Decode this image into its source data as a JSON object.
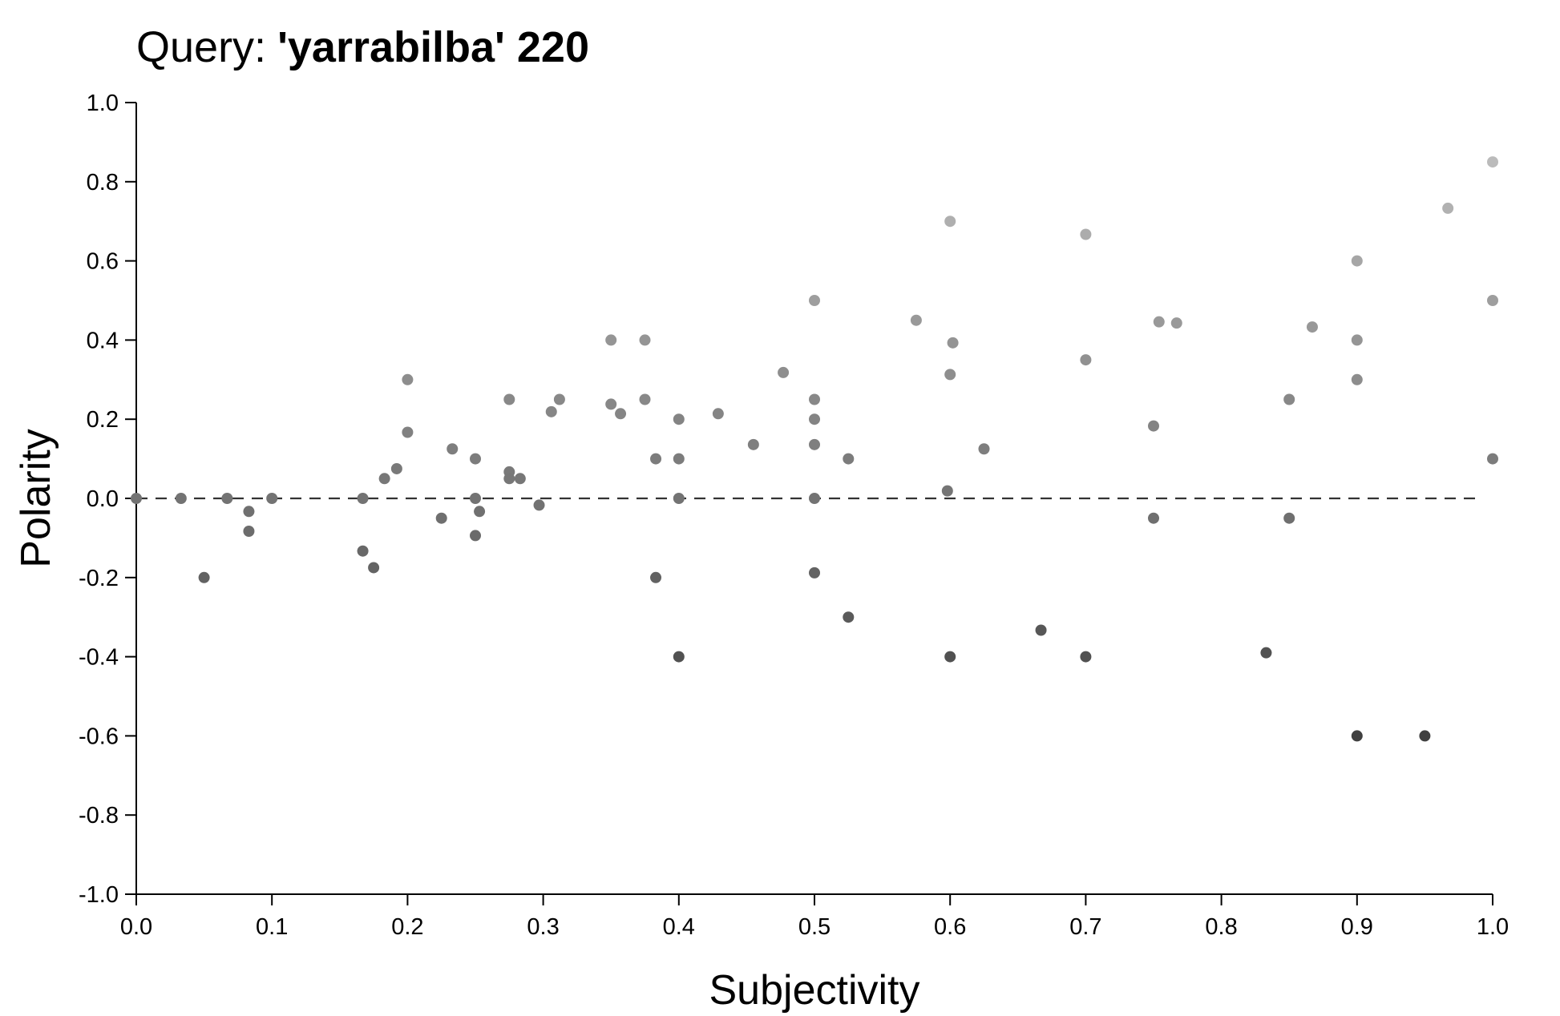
{
  "title": {
    "prefix": "Query:",
    "query": "'yarrabilba' 220"
  },
  "chart_data": {
    "type": "scatter",
    "xlabel": "Subjectivity",
    "ylabel": "Polarity",
    "xlim": [
      0,
      1
    ],
    "ylim": [
      -1,
      1
    ],
    "xticks": [
      "0.0",
      "0.1",
      "0.2",
      "0.3",
      "0.4",
      "0.5",
      "0.6",
      "0.7",
      "0.8",
      "0.9",
      "1.0"
    ],
    "yticks": [
      "1.0",
      "0.8",
      "0.6",
      "0.4",
      "0.2",
      "0.0",
      "-0.2",
      "-0.4",
      "-0.6",
      "-0.8",
      "-1.0"
    ],
    "reference_line": {
      "y": 0,
      "style": "dashed"
    },
    "grid": false,
    "point_color_encoding": "grayscale by polarity (darker = more negative, lighter = more positive)",
    "points": [
      [
        0.0,
        0.0
      ],
      [
        0.033,
        0.0
      ],
      [
        0.05,
        -0.2
      ],
      [
        0.067,
        0.0
      ],
      [
        0.083,
        -0.033
      ],
      [
        0.083,
        -0.083
      ],
      [
        0.1,
        0.0
      ],
      [
        0.167,
        0.0
      ],
      [
        0.167,
        -0.133
      ],
      [
        0.175,
        -0.175
      ],
      [
        0.183,
        0.05
      ],
      [
        0.192,
        0.075
      ],
      [
        0.2,
        0.3
      ],
      [
        0.2,
        0.167
      ],
      [
        0.225,
        -0.05
      ],
      [
        0.233,
        0.125
      ],
      [
        0.25,
        0.1
      ],
      [
        0.25,
        0.0
      ],
      [
        0.25,
        -0.094
      ],
      [
        0.253,
        -0.033
      ],
      [
        0.275,
        0.25
      ],
      [
        0.275,
        0.067
      ],
      [
        0.275,
        0.05
      ],
      [
        0.283,
        0.05
      ],
      [
        0.297,
        -0.017
      ],
      [
        0.306,
        0.219
      ],
      [
        0.312,
        0.25
      ],
      [
        0.35,
        0.4
      ],
      [
        0.35,
        0.238
      ],
      [
        0.357,
        0.214
      ],
      [
        0.375,
        0.4
      ],
      [
        0.375,
        0.25
      ],
      [
        0.383,
        0.1
      ],
      [
        0.383,
        -0.2
      ],
      [
        0.4,
        0.2
      ],
      [
        0.4,
        0.1
      ],
      [
        0.4,
        0.0
      ],
      [
        0.4,
        -0.4
      ],
      [
        0.429,
        0.214
      ],
      [
        0.455,
        0.136
      ],
      [
        0.477,
        0.318
      ],
      [
        0.5,
        0.5
      ],
      [
        0.5,
        0.25
      ],
      [
        0.5,
        0.2
      ],
      [
        0.5,
        0.136
      ],
      [
        0.5,
        0.0
      ],
      [
        0.5,
        -0.188
      ],
      [
        0.525,
        0.1
      ],
      [
        0.525,
        -0.3
      ],
      [
        0.575,
        0.45
      ],
      [
        0.598,
        0.019
      ],
      [
        0.6,
        0.7
      ],
      [
        0.602,
        0.393
      ],
      [
        0.6,
        0.313
      ],
      [
        0.6,
        -0.4
      ],
      [
        0.625,
        0.125
      ],
      [
        0.667,
        -0.333
      ],
      [
        0.7,
        0.667
      ],
      [
        0.7,
        0.35
      ],
      [
        0.7,
        -0.4
      ],
      [
        0.75,
        0.183
      ],
      [
        0.75,
        -0.05
      ],
      [
        0.754,
        0.446
      ],
      [
        0.767,
        0.443
      ],
      [
        0.833,
        -0.39
      ],
      [
        0.85,
        0.25
      ],
      [
        0.85,
        -0.05
      ],
      [
        0.867,
        0.433
      ],
      [
        0.9,
        0.6
      ],
      [
        0.9,
        0.4
      ],
      [
        0.9,
        0.3
      ],
      [
        0.9,
        -0.6
      ],
      [
        0.95,
        -0.6
      ],
      [
        0.967,
        0.733
      ],
      [
        1.0,
        0.85
      ],
      [
        1.0,
        0.5
      ],
      [
        1.0,
        0.1
      ]
    ]
  }
}
